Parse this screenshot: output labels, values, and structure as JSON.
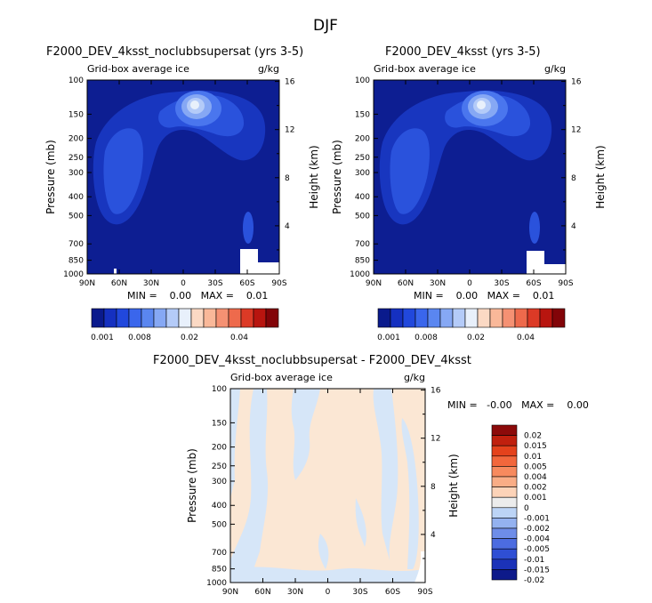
{
  "page_title": "DJF",
  "chart_data": [
    {
      "type": "contour",
      "title": "F2000_DEV_4ksst_noclubbsupersat (yrs 3-5)",
      "subtitle_left": "Grid-box average ice",
      "subtitle_right": "g/kg",
      "ylabel": "Pressure (mb)",
      "ylabel_right": "Height (km)",
      "x_ticks": [
        "90N",
        "60N",
        "30N",
        "0",
        "30S",
        "60S",
        "90S"
      ],
      "y_ticks": [
        "100",
        "150",
        "200",
        "250",
        "300",
        "400",
        "500",
        "700",
        "850",
        "1000"
      ],
      "y_ticks_right": [
        "16",
        "12",
        "8",
        "4"
      ],
      "stats": "MIN =    0.00   MAX =    0.01",
      "colorbar_labels": [
        "0.001",
        "0.008",
        "0.02",
        "0.04"
      ]
    },
    {
      "type": "contour",
      "title": "F2000_DEV_4ksst (yrs 3-5)",
      "subtitle_left": "Grid-box average ice",
      "subtitle_right": "g/kg",
      "ylabel": "Pressure (mb)",
      "ylabel_right": "Height (km)",
      "x_ticks": [
        "90N",
        "60N",
        "30N",
        "0",
        "30S",
        "60S",
        "90S"
      ],
      "y_ticks": [
        "100",
        "150",
        "200",
        "250",
        "300",
        "400",
        "500",
        "700",
        "850",
        "1000"
      ],
      "y_ticks_right": [
        "16",
        "12",
        "8",
        "4"
      ],
      "stats": "MIN =    0.00   MAX =    0.01",
      "colorbar_labels": [
        "0.001",
        "0.008",
        "0.02",
        "0.04"
      ]
    },
    {
      "type": "contour",
      "title": "F2000_DEV_4ksst_noclubbsupersat - F2000_DEV_4ksst",
      "subtitle_left": "Grid-box average ice",
      "subtitle_right": "g/kg",
      "ylabel": "Pressure (mb)",
      "ylabel_right": "Height (km)",
      "x_ticks": [
        "90N",
        "60N",
        "30N",
        "0",
        "30S",
        "60S",
        "90S"
      ],
      "y_ticks": [
        "100",
        "150",
        "200",
        "250",
        "300",
        "400",
        "500",
        "700",
        "850",
        "1000"
      ],
      "y_ticks_right": [
        "16",
        "12",
        "8",
        "4"
      ],
      "stats": "MIN =   -0.00   MAX =    0.00",
      "colorbar_labels": [
        "0.02",
        "0.015",
        "0.01",
        "0.005",
        "0.004",
        "0.002",
        "0.001",
        "0",
        "-0.001",
        "-0.002",
        "-0.004",
        "-0.005",
        "-0.01",
        "-0.015",
        "-0.02"
      ]
    }
  ],
  "colors": {
    "abs_scale": [
      "#0a1a8c",
      "#1530c0",
      "#2148dc",
      "#3a66ec",
      "#5a86f0",
      "#86a8f4",
      "#b4cbf8",
      "#e8f0fb",
      "#fbd9c4",
      "#f9b899",
      "#f59173",
      "#ee6a4c",
      "#dc3a26",
      "#b8150f",
      "#820408"
    ],
    "diff_scale": [
      "#8c0a0a",
      "#c0200e",
      "#e4421c",
      "#f2673c",
      "#f78a5e",
      "#f9ad86",
      "#fcd3b8",
      "#ececec",
      "#bcd4f6",
      "#94b2f0",
      "#6e8de8",
      "#4c6ce0",
      "#2f4fd4",
      "#1b32b8",
      "#0d1a8a"
    ],
    "diff_field_cream": "#fbe7d4",
    "diff_field_blue": "#d6e6f8"
  }
}
